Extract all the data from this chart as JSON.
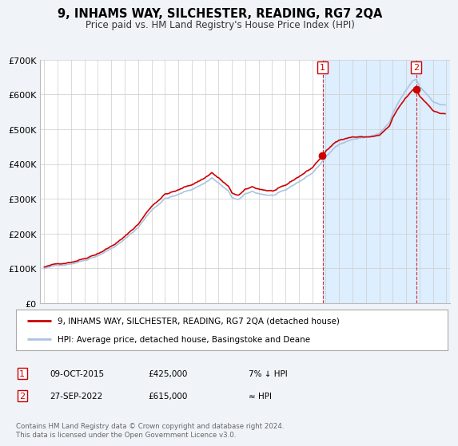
{
  "title": "9, INHAMS WAY, SILCHESTER, READING, RG7 2QA",
  "subtitle": "Price paid vs. HM Land Registry's House Price Index (HPI)",
  "legend_line1": "9, INHAMS WAY, SILCHESTER, READING, RG7 2QA (detached house)",
  "legend_line2": "HPI: Average price, detached house, Basingstoke and Deane",
  "annotation1_label": "1",
  "annotation1_date": "09-OCT-2015",
  "annotation1_price": "£425,000",
  "annotation1_hpi": "7% ↓ HPI",
  "annotation2_label": "2",
  "annotation2_date": "27-SEP-2022",
  "annotation2_price": "£615,000",
  "annotation2_hpi": "≈ HPI",
  "footer": "Contains HM Land Registry data © Crown copyright and database right 2024.\nThis data is licensed under the Open Government Licence v3.0.",
  "hpi_color": "#aac4e0",
  "price_color": "#cc0000",
  "annotation_color": "#cc0000",
  "bg_color": "#f0f4f8",
  "plot_bg_color": "#ffffff",
  "shade_color": "#ddeeff",
  "grid_color": "#cccccc",
  "ylim": [
    0,
    700000
  ],
  "yticks": [
    0,
    100000,
    200000,
    300000,
    400000,
    500000,
    600000,
    700000
  ],
  "ytick_labels": [
    "£0",
    "£100K",
    "£200K",
    "£300K",
    "£400K",
    "£500K",
    "£600K",
    "£700K"
  ],
  "sale1_year": 2015.78,
  "sale1_price": 425000,
  "sale2_year": 2022.75,
  "sale2_price": 615000
}
